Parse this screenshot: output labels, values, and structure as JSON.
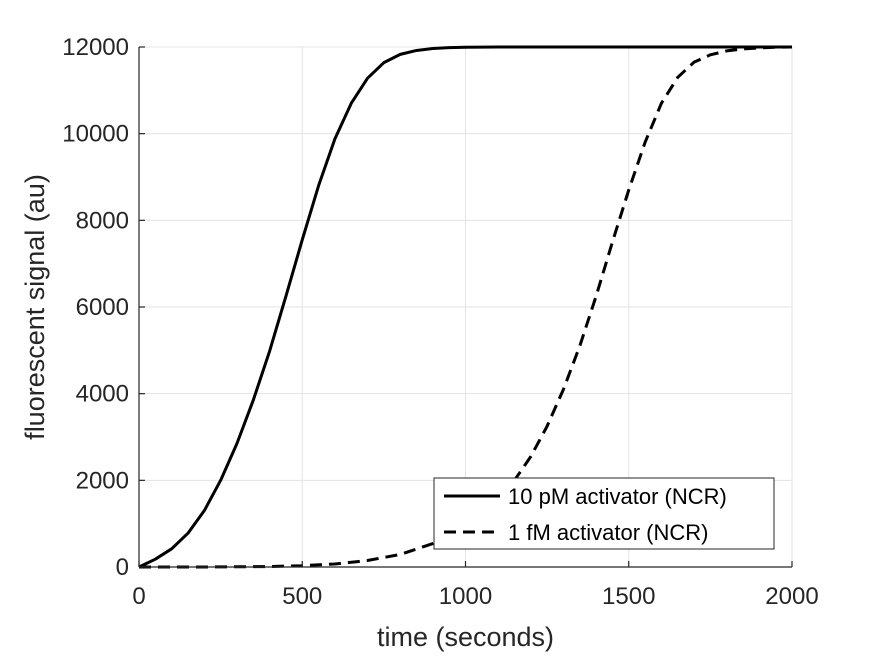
{
  "chart_data": {
    "type": "line",
    "title": "",
    "xlabel": "time (seconds)",
    "ylabel": "fluorescent signal (au)",
    "xlim": [
      0,
      2000
    ],
    "ylim": [
      0,
      12000
    ],
    "xticks": [
      0,
      500,
      1000,
      1500,
      2000
    ],
    "yticks": [
      0,
      2000,
      4000,
      6000,
      8000,
      10000,
      12000
    ],
    "xtick_labels": [
      "0",
      "500",
      "1000",
      "1500",
      "2000"
    ],
    "ytick_labels": [
      "0",
      "2000",
      "4000",
      "6000",
      "8000",
      "10000",
      "12000"
    ],
    "grid": true,
    "legend_position": "bottom-right",
    "colors": {
      "series": "#000000",
      "grid": "#e3e3e3",
      "axis": "#262626",
      "background": "#ffffff"
    },
    "series": [
      {
        "name": "10 pM activator (NCR)",
        "line_style": "solid",
        "x": [
          0,
          50,
          100,
          150,
          200,
          250,
          300,
          350,
          400,
          450,
          500,
          550,
          600,
          650,
          700,
          750,
          800,
          850,
          900,
          950,
          1000,
          1100,
          1200,
          1400,
          1600,
          1800,
          2000
        ],
        "y": [
          0,
          180,
          420,
          780,
          1300,
          2000,
          2850,
          3850,
          4980,
          6250,
          7550,
          8800,
          9880,
          10700,
          11280,
          11640,
          11830,
          11920,
          11965,
          11985,
          11995,
          12000,
          12000,
          12000,
          12000,
          12000,
          12000
        ]
      },
      {
        "name": "1 fM activator (NCR)",
        "line_style": "dashed",
        "x": [
          0,
          200,
          400,
          500,
          600,
          700,
          800,
          900,
          950,
          1000,
          1050,
          1100,
          1150,
          1200,
          1250,
          1300,
          1350,
          1400,
          1450,
          1500,
          1550,
          1600,
          1650,
          1700,
          1750,
          1800,
          1850,
          1900,
          1950,
          2000
        ],
        "y": [
          0,
          0,
          10,
          30,
          70,
          150,
          290,
          540,
          720,
          950,
          1230,
          1580,
          2000,
          2550,
          3250,
          4100,
          5100,
          6250,
          7500,
          8700,
          9800,
          10700,
          11300,
          11650,
          11820,
          11910,
          11955,
          11980,
          11995,
          12000
        ]
      }
    ]
  }
}
